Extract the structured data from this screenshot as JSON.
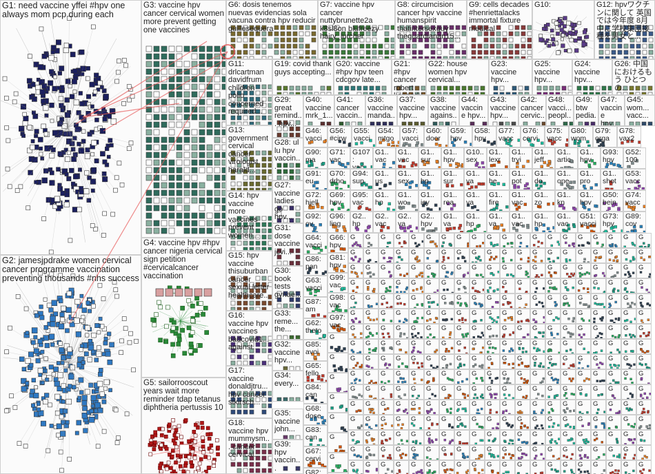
{
  "accent_colors": {
    "node_dark": "#1b1f5e",
    "node_blue": "#2e78c2",
    "node_green": "#2a8a3a",
    "node_red": "#b01818",
    "edge_red": "#e85a5a",
    "edge_gray": "#9a9a9a"
  },
  "groups": {
    "g1": {
      "id": "G1:",
      "text": "need vaccine yffei #hpv one always mom pcp during each"
    },
    "g2": {
      "id": "G2:",
      "text": "jamesjpdrake women cervical cancer programme vaccination preventing thousands #nhs success"
    },
    "g3": {
      "id": "G3:",
      "text": "vaccine hpv cancer cervical women more prevent getting one vaccines"
    },
    "g4": {
      "id": "G4:",
      "text": "vaccine hpv #hpv cancer nigeria cervical sign petition #cervicalcancer vaccination"
    },
    "g5": {
      "id": "G5:",
      "text": "sailorrooscout years wait more reminder tdap tetanus diphtheria pertussis 10"
    },
    "g6": {
      "id": "G6:",
      "text": "dosis tenemos nuevas evidencias sola vacuna contra hpv reducir guillesequera"
    },
    "g7": {
      "id": "G7:",
      "text": "vaccine hpv cancer nuttybrunette2a k8sl8on blufreezy hairy_lurcher"
    },
    "g8": {
      "id": "G8:",
      "text": "circumcision cancer hpv vaccine humanspirit thatintersexguy theguardianan15..."
    },
    "g9": {
      "id": "G9:",
      "text": "cells decades #henriettalacks immortal fixture medical"
    },
    "g10": {
      "id": "G10:",
      "text": ""
    },
    "g11": {
      "id": "G11:",
      "text": "drlcartman davidfrum children polio concerned required..."
    },
    "g12": {
      "id": "G12:",
      "text": "hpvワクチンに関して 英国では今年度 8月中に学校集団接種を男女と..."
    },
    "g13": {
      "id": "G13:",
      "text": "government cervical cancer virologist harald..."
    },
    "g14": {
      "id": "G14:",
      "text": "hpv vaccine more vaccines prevent women..."
    },
    "g15": {
      "id": "G15:",
      "text": "hpv vaccine thisuburban cancer sexual letter healthcare..."
    },
    "g16": {
      "id": "G16:",
      "text": "vaccine hpv vaccines badcovid1... against..."
    },
    "g17": {
      "id": "G17:",
      "text": "vaccine donaldjtru... hpv cancer stkirsch..."
    },
    "g18": {
      "id": "G18:",
      "text": "vaccine hpv mummysm... cancer cervical..."
    },
    "g19": {
      "id": "G19:",
      "text": "covid thank guys accepting..."
    },
    "g20": {
      "id": "G20:",
      "text": "vaccine #hpv hpv teen cdcgov late..."
    },
    "g21": {
      "id": "G21:",
      "text": "#hpv cancer robert kennedy jr..."
    },
    "g22": {
      "id": "G22:",
      "text": "house women hpv cervical..."
    },
    "g23": {
      "id": "G23:",
      "text": "vaccine hpv..."
    },
    "g24": {
      "id": "G24:",
      "text": "vaccine hpv..."
    },
    "g25": {
      "id": "G25:",
      "text": "vaccine hpv..."
    },
    "g26": {
      "id": "G26:",
      "text": "中国 におけるもう ひとつの..."
    },
    "g27": {
      "id": "G27:",
      "text": "vaccine ladies go hpv..."
    },
    "g28": {
      "id": "G28:",
      "text": "ul lu hpv vaccin..."
    },
    "g29": {
      "id": "G29:",
      "text": "great remind... hpv..."
    },
    "g31": {
      "id": "G31:",
      "text": "dose vaccine jcvi..."
    },
    "g32": {
      "id": "G32:",
      "text": "vaccine hpv..."
    },
    "g33": {
      "id": "G33:",
      "text": "reme... the..."
    },
    "g34": {
      "id": "G34:",
      "text": "every..."
    },
    "g35": {
      "id": "G35:",
      "text": "vaccine john..."
    },
    "g39": {
      "id": "G39:",
      "text": "hpv vaccin..."
    },
    "g30": {
      "id": "G30:",
      "text": "book tests gynae..."
    },
    "g40": {
      "id": "G40:",
      "text": "vaccine mrk_1..."
    },
    "g41": {
      "id": "G41:",
      "text": "cancer vaccin..."
    },
    "g36": {
      "id": "G36:",
      "text": "vaccine manda..."
    },
    "g37": {
      "id": "G37:",
      "text": "vaccine hpv..."
    },
    "g38": {
      "id": "G38:",
      "text": "vaccine agains..."
    },
    "g44": {
      "id": "G44:",
      "text": "vaccine hpv..."
    },
    "g43": {
      "id": "G43:",
      "text": "vaccine hpv..."
    },
    "g42": {
      "id": "G42:",
      "text": "cancer cervic..."
    },
    "g48": {
      "id": "G48:",
      "text": "vacci... peopl..."
    },
    "g49": {
      "id": "G49:",
      "text": "btw pedia..."
    },
    "g47": {
      "id": "G47:",
      "text": "vaccine hpv..."
    },
    "g45": {
      "id": "G45:",
      "text": "wom... vacc..."
    }
  },
  "small_cells": [
    [
      "G46:",
      "vacci"
    ],
    [
      "G56:",
      "#cirw"
    ],
    [
      "G55:",
      "vacci"
    ],
    [
      "G54:",
      "mtgo"
    ],
    [
      "G57:",
      "vacci"
    ],
    [
      "G60:",
      "door"
    ],
    [
      "G59:",
      "hpv"
    ],
    [
      "G58:",
      "hpv"
    ],
    [
      "G77:",
      "vacc"
    ],
    [
      "G76:",
      "cervi"
    ],
    [
      "G75:",
      "vacc"
    ],
    [
      "G80:",
      "wom"
    ],
    [
      "G79:",
      "orga"
    ],
    [
      "G78:",
      "vax2"
    ],
    [
      "G71:",
      "vac"
    ],
    [
      "G107:",
      "vac"
    ],
    [
      "G1..",
      "vac"
    ],
    [
      "G1..",
      "vac"
    ],
    [
      "G1..",
      "sur"
    ],
    [
      "G1..",
      "hpv"
    ],
    [
      "G10..",
      "sex"
    ],
    [
      "G1..",
      "lexr"
    ],
    [
      "G1..",
      "tryi"
    ],
    [
      "G1..",
      "jeff"
    ],
    [
      "G1..",
      "artic"
    ],
    [
      "G1..",
      "hpv"
    ],
    [
      "G93:",
      "hpv"
    ],
    [
      "G52:",
      "100"
    ],
    [
      "G70:",
      "drho"
    ],
    [
      "G94:",
      "sup"
    ],
    [
      "G1..",
      "us"
    ],
    [
      "G1..",
      "sex"
    ],
    [
      "G1..",
      "hp"
    ],
    [
      "G1..",
      "sur"
    ],
    [
      "G1..",
      "va"
    ],
    [
      "G1..",
      "he"
    ],
    [
      "G1..",
      "pot"
    ],
    [
      "G1..",
      "do"
    ],
    [
      "G1..",
      "one"
    ],
    [
      "G1..",
      "pro"
    ],
    [
      "G1..",
      "shot"
    ],
    [
      "G53:",
      "vacc"
    ],
    [
      "G69:",
      "hpv"
    ],
    [
      "G95:",
      "vac"
    ],
    [
      "G1..",
      "hp"
    ],
    [
      "G1..",
      "wo"
    ],
    [
      "G1..",
      "icy"
    ],
    [
      "G1..",
      "rea"
    ],
    [
      "G1..",
      "va"
    ],
    [
      "G1..",
      "fire"
    ],
    [
      "G1..",
      "vac"
    ],
    [
      "G1..",
      "zo"
    ],
    [
      "G1..",
      "kn"
    ],
    [
      "G1..",
      "hpv"
    ],
    [
      "G50:",
      "bein"
    ],
    [
      "G74:",
      "vacc"
    ],
    [
      "G96:",
      "ling"
    ],
    [
      "G2..",
      "hp"
    ],
    [
      "G2..",
      "vac"
    ],
    [
      "G2..",
      "va"
    ],
    [
      "G2..",
      "hpv"
    ],
    [
      "G1..",
      "va"
    ],
    [
      "G1..",
      "hp"
    ],
    [
      "G1..",
      "va"
    ],
    [
      "G1..",
      "vac"
    ],
    [
      "G1..",
      "hp"
    ],
    [
      "G1..",
      "vac"
    ],
    [
      "G51:",
      "vacci"
    ],
    [
      "G73:",
      "hpv"
    ],
    [
      "G89:",
      "cov"
    ],
    [
      "G90:",
      "ma"
    ],
    [
      "G91:",
      "eu"
    ],
    [
      "G72:",
      "hjell"
    ],
    [
      "G92:",
      "ov"
    ],
    [
      "G64:",
      "vacci"
    ],
    [
      "G86:",
      "pan"
    ],
    [
      "G63:",
      "vacci"
    ],
    [
      "G87:",
      "am"
    ],
    [
      "G62:",
      "theto"
    ],
    [
      "G85:",
      "avoi"
    ],
    [
      "G65:",
      "fello"
    ],
    [
      "G84:",
      "can"
    ],
    [
      "G68:",
      "dose"
    ],
    [
      "G83:",
      "can"
    ],
    [
      "G67:",
      "cervi"
    ],
    [
      "G82:",
      "nov"
    ],
    [
      "G66:",
      "hpv"
    ],
    [
      "G81:",
      "hpv"
    ],
    [
      "G99:",
      "vac"
    ],
    [
      "G98:",
      "vac"
    ],
    [
      "G97:",
      "vac"
    ]
  ]
}
